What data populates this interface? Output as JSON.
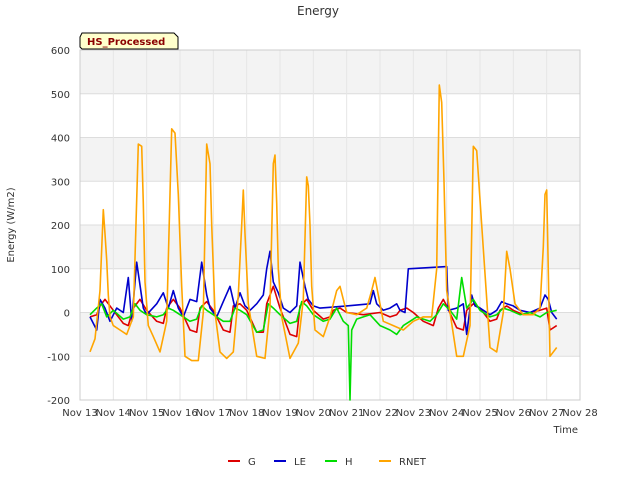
{
  "chart_data": {
    "type": "line",
    "title": "Energy",
    "xlabel": "Time",
    "ylabel": "Energy (W/m2)",
    "badge": "HS_Processed",
    "ylim": [
      -200,
      600
    ],
    "xlim": [
      13,
      28
    ],
    "y_ticks": [
      -200,
      -100,
      0,
      100,
      200,
      300,
      400,
      500,
      600
    ],
    "x_ticks": [
      {
        "x": 13,
        "label": "Nov 13"
      },
      {
        "x": 14,
        "label": "Nov 14"
      },
      {
        "x": 15,
        "label": "Nov 15"
      },
      {
        "x": 16,
        "label": "Nov 16"
      },
      {
        "x": 17,
        "label": "Nov 17"
      },
      {
        "x": 18,
        "label": "Nov 18"
      },
      {
        "x": 19,
        "label": "Nov 19"
      },
      {
        "x": 20,
        "label": "Nov 20"
      },
      {
        "x": 21,
        "label": "Nov 21"
      },
      {
        "x": 22,
        "label": "Nov 22"
      },
      {
        "x": 23,
        "label": "Nov 23"
      },
      {
        "x": 24,
        "label": "Nov 24"
      },
      {
        "x": 25,
        "label": "Nov 25"
      },
      {
        "x": 26,
        "label": "Nov 26"
      },
      {
        "x": 27,
        "label": "Nov 27"
      },
      {
        "x": 28,
        "label": "Nov 28"
      }
    ],
    "grid": true,
    "legend_position": "bottom-center",
    "series": [
      {
        "name": "G",
        "color": "#dd0000",
        "x": [
          13.3,
          13.5,
          13.6,
          13.75,
          14.0,
          14.3,
          14.45,
          14.6,
          14.8,
          15.0,
          15.3,
          15.5,
          15.6,
          15.8,
          16.0,
          16.3,
          16.5,
          16.6,
          16.8,
          17.0,
          17.3,
          17.5,
          17.6,
          17.8,
          18.0,
          18.3,
          18.5,
          18.6,
          18.8,
          19.0,
          19.3,
          19.5,
          19.6,
          19.8,
          20.0,
          20.3,
          20.5,
          20.6,
          20.8,
          21.0,
          21.5,
          22.0,
          22.3,
          22.5,
          22.6,
          22.8,
          23.0,
          23.3,
          23.6,
          23.75,
          23.9,
          24.0,
          24.3,
          24.5,
          24.6,
          24.8,
          25.0,
          25.3,
          25.5,
          25.6,
          25.8,
          26.0,
          26.3,
          26.5,
          26.8,
          27.0,
          27.1,
          27.3
        ],
        "y": [
          -10,
          -5,
          15,
          30,
          5,
          -25,
          -30,
          10,
          30,
          5,
          -20,
          -25,
          10,
          30,
          10,
          -40,
          -45,
          10,
          25,
          5,
          -40,
          -45,
          15,
          20,
          5,
          -45,
          -45,
          20,
          60,
          10,
          -50,
          -55,
          15,
          30,
          5,
          -15,
          -10,
          5,
          10,
          0,
          -5,
          0,
          -10,
          -5,
          5,
          10,
          0,
          -20,
          -30,
          10,
          30,
          15,
          -35,
          -40,
          5,
          20,
          10,
          -20,
          -15,
          5,
          15,
          5,
          -5,
          0,
          5,
          10,
          -40,
          -30
        ]
      },
      {
        "name": "LE",
        "color": "#0000cc",
        "x": [
          13.3,
          13.5,
          13.6,
          13.75,
          13.9,
          14.1,
          14.3,
          14.45,
          14.55,
          14.7,
          14.9,
          15.0,
          15.3,
          15.5,
          15.65,
          15.8,
          15.95,
          16.1,
          16.3,
          16.5,
          16.65,
          16.8,
          16.9,
          17.1,
          17.3,
          17.5,
          17.65,
          17.8,
          17.95,
          18.1,
          18.3,
          18.5,
          18.6,
          18.7,
          18.8,
          18.95,
          19.1,
          19.3,
          19.5,
          19.6,
          19.75,
          19.85,
          20.0,
          20.2,
          20.5,
          21.0,
          21.7,
          21.8,
          21.9,
          22.1,
          22.3,
          22.5,
          22.6,
          22.75,
          22.85,
          24.0,
          24.05,
          24.3,
          24.5,
          24.6,
          24.75,
          24.85,
          25.0,
          25.3,
          25.5,
          25.65,
          25.8,
          26.0,
          26.2,
          26.5,
          26.8,
          26.95,
          27.05,
          27.15,
          27.3
        ],
        "y": [
          -10,
          -40,
          30,
          10,
          -20,
          10,
          0,
          80,
          -20,
          115,
          10,
          -5,
          20,
          45,
          10,
          50,
          10,
          -10,
          30,
          25,
          115,
          40,
          10,
          -10,
          25,
          60,
          10,
          45,
          15,
          5,
          20,
          40,
          100,
          140,
          70,
          45,
          10,
          0,
          15,
          115,
          60,
          30,
          15,
          10,
          12,
          15,
          20,
          50,
          20,
          5,
          10,
          20,
          5,
          0,
          100,
          105,
          5,
          10,
          20,
          -50,
          40,
          15,
          10,
          -5,
          5,
          25,
          20,
          15,
          5,
          0,
          10,
          40,
          30,
          0,
          -15
        ]
      },
      {
        "name": "H",
        "color": "#00dd00",
        "x": [
          13.3,
          13.5,
          13.65,
          13.8,
          14.0,
          14.3,
          14.5,
          14.65,
          14.8,
          15.0,
          15.3,
          15.5,
          15.65,
          15.8,
          16.0,
          16.3,
          16.5,
          16.65,
          16.8,
          17.0,
          17.3,
          17.5,
          17.65,
          17.8,
          18.0,
          18.3,
          18.5,
          18.65,
          18.8,
          19.0,
          19.3,
          19.5,
          19.65,
          19.8,
          20.0,
          20.3,
          20.5,
          20.7,
          20.9,
          21.05,
          21.1,
          21.15,
          21.3,
          21.5,
          21.7,
          22.0,
          22.3,
          22.5,
          22.7,
          22.9,
          23.1,
          23.3,
          23.5,
          23.7,
          23.9,
          24.1,
          24.3,
          24.45,
          24.6,
          24.8,
          25.0,
          25.3,
          25.5,
          25.7,
          25.9,
          26.2,
          26.5,
          26.8,
          27.0,
          27.3
        ],
        "y": [
          -5,
          10,
          20,
          -10,
          5,
          -15,
          -10,
          20,
          5,
          -5,
          -10,
          -5,
          10,
          5,
          -5,
          -20,
          -15,
          15,
          5,
          -5,
          -20,
          -20,
          10,
          5,
          -5,
          -45,
          -40,
          20,
          10,
          -5,
          -25,
          -20,
          25,
          15,
          -5,
          -20,
          -15,
          10,
          -20,
          -30,
          -200,
          -40,
          -15,
          -10,
          -5,
          -30,
          -40,
          -50,
          -30,
          -20,
          -10,
          -15,
          -20,
          -5,
          20,
          5,
          -15,
          80,
          10,
          30,
          5,
          -10,
          -5,
          10,
          5,
          -5,
          0,
          -10,
          0,
          5
        ]
      },
      {
        "name": "RNET",
        "color": "#ffa500",
        "x": [
          13.3,
          13.45,
          13.6,
          13.7,
          13.75,
          13.8,
          13.85,
          13.9,
          14.0,
          14.2,
          14.4,
          14.6,
          14.75,
          14.85,
          14.9,
          14.95,
          15.05,
          15.2,
          15.4,
          15.6,
          15.75,
          15.85,
          15.95,
          16.05,
          16.15,
          16.35,
          16.55,
          16.7,
          16.8,
          16.9,
          16.95,
          17.05,
          17.2,
          17.4,
          17.6,
          17.75,
          17.85,
          17.9,
          17.95,
          18.05,
          18.3,
          18.55,
          18.7,
          18.8,
          18.85,
          18.9,
          18.95,
          19.05,
          19.3,
          19.55,
          19.7,
          19.8,
          19.85,
          19.9,
          19.95,
          20.05,
          20.3,
          20.5,
          20.7,
          20.8,
          20.9,
          21.0,
          21.3,
          21.6,
          21.75,
          21.85,
          21.95,
          22.1,
          22.4,
          22.7,
          23.0,
          23.3,
          23.55,
          23.7,
          23.78,
          23.85,
          23.92,
          24.0,
          24.3,
          24.5,
          24.7,
          24.8,
          24.9,
          25.05,
          25.3,
          25.5,
          25.7,
          25.8,
          25.9,
          26.05,
          26.3,
          26.6,
          26.8,
          26.9,
          26.95,
          27.0,
          27.1,
          27.3
        ],
        "y": [
          -90,
          -60,
          50,
          235,
          180,
          120,
          40,
          -10,
          -30,
          -40,
          -50,
          -10,
          385,
          380,
          250,
          70,
          -30,
          -55,
          -90,
          -20,
          420,
          410,
          270,
          60,
          -100,
          -110,
          -110,
          0,
          385,
          340,
          200,
          0,
          -90,
          -105,
          -90,
          40,
          200,
          280,
          180,
          20,
          -100,
          -105,
          10,
          340,
          360,
          250,
          100,
          -10,
          -105,
          -70,
          30,
          310,
          290,
          200,
          60,
          -40,
          -55,
          -10,
          50,
          60,
          30,
          0,
          -5,
          10,
          50,
          80,
          40,
          -20,
          -30,
          -40,
          -20,
          -10,
          -10,
          100,
          520,
          480,
          300,
          50,
          -100,
          -100,
          -30,
          380,
          370,
          200,
          -80,
          -90,
          0,
          140,
          100,
          20,
          -5,
          -5,
          10,
          150,
          270,
          280,
          -100,
          -80
        ]
      }
    ]
  }
}
